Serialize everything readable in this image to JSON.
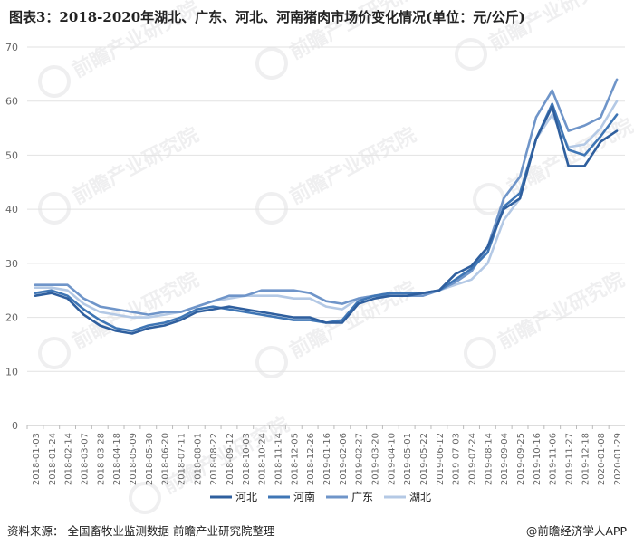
{
  "title": "图表3：2018-2020年湖北、广东、河北、河南猪肉市场价变化情况(单位：元/公斤)",
  "footer": {
    "source": "资料来源：  全国畜牧业监测数据 前瞻产业研究院整理",
    "brand": "@前瞻经济学人APP"
  },
  "watermark": "前瞻产业研究院",
  "colors": {
    "河北": "#2f5f9e",
    "河南": "#3f76b5",
    "广东": "#6f95c9",
    "湖北": "#b4c9e5",
    "grid": "#e2e2e2",
    "axis_text": "#666666"
  },
  "chart_data": {
    "type": "line",
    "title": "图表3：2018-2020年湖北、广东、河北、河南猪肉市场价变化情况(单位：元/公斤)",
    "xlabel": "",
    "ylabel": "",
    "ylim": [
      0,
      70
    ],
    "yticks": [
      0,
      10,
      20,
      30,
      40,
      50,
      60,
      70
    ],
    "grid": "horizontal",
    "legend": "bottom",
    "categories": [
      "2018-01-03",
      "2018-01-24",
      "2018-02-14",
      "2018-03-07",
      "2018-03-28",
      "2018-04-18",
      "2018-05-09",
      "2018-05-30",
      "2018-06-20",
      "2018-07-11",
      "2018-08-01",
      "2018-08-22",
      "2018-09-12",
      "2018-10-03",
      "2018-10-24",
      "2018-11-14",
      "2018-12-05",
      "2018-12-26",
      "2019-01-16",
      "2019-02-06",
      "2019-02-27",
      "2019-03-20",
      "2019-04-10",
      "2019-05-01",
      "2019-05-22",
      "2019-06-12",
      "2019-07-03",
      "2019-07-24",
      "2019-08-14",
      "2019-09-04",
      "2019-09-25",
      "2019-10-16",
      "2019-11-06",
      "2019-11-27",
      "2019-12-18",
      "2020-01-08",
      "2020-01-29"
    ],
    "series": [
      {
        "name": "河北",
        "values": [
          24.0,
          24.5,
          23.5,
          20.5,
          18.5,
          17.5,
          17.0,
          18.0,
          18.5,
          19.5,
          21.0,
          21.5,
          22.0,
          21.5,
          21.0,
          20.5,
          20.0,
          20.0,
          19.0,
          19.0,
          22.5,
          23.5,
          24.0,
          24.0,
          24.5,
          25.0,
          28.0,
          29.5,
          33.0,
          40.0,
          42.0,
          53.0,
          59.0,
          48.0,
          48.0,
          52.5,
          54.5
        ]
      },
      {
        "name": "河南",
        "values": [
          24.5,
          25.0,
          24.0,
          21.5,
          19.5,
          18.0,
          17.5,
          18.5,
          19.0,
          20.0,
          21.5,
          22.0,
          21.5,
          21.0,
          20.5,
          20.0,
          19.5,
          19.5,
          19.0,
          19.5,
          23.0,
          24.0,
          24.5,
          24.5,
          24.5,
          25.0,
          27.0,
          29.0,
          32.0,
          40.5,
          43.0,
          53.0,
          59.5,
          51.0,
          50.0,
          53.5,
          57.5
        ]
      },
      {
        "name": "广东",
        "values": [
          26.0,
          26.0,
          26.0,
          23.5,
          22.0,
          21.5,
          21.0,
          20.5,
          21.0,
          21.0,
          22.0,
          23.0,
          24.0,
          24.0,
          25.0,
          25.0,
          25.0,
          24.5,
          23.0,
          22.5,
          23.5,
          24.0,
          24.0,
          24.0,
          24.0,
          25.0,
          26.5,
          28.5,
          33.0,
          42.0,
          46.0,
          57.0,
          62.0,
          54.5,
          55.5,
          57.0,
          64.0
        ]
      },
      {
        "name": "湖北",
        "values": [
          25.5,
          25.5,
          25.0,
          22.5,
          21.0,
          20.5,
          20.0,
          20.0,
          20.5,
          21.0,
          22.0,
          23.0,
          23.5,
          24.0,
          24.0,
          24.0,
          23.5,
          23.5,
          22.0,
          21.5,
          23.5,
          24.0,
          24.0,
          24.0,
          24.0,
          25.0,
          26.0,
          27.0,
          30.0,
          38.0,
          42.0,
          53.0,
          57.5,
          51.5,
          52.0,
          55.0,
          60.0
        ]
      }
    ]
  }
}
